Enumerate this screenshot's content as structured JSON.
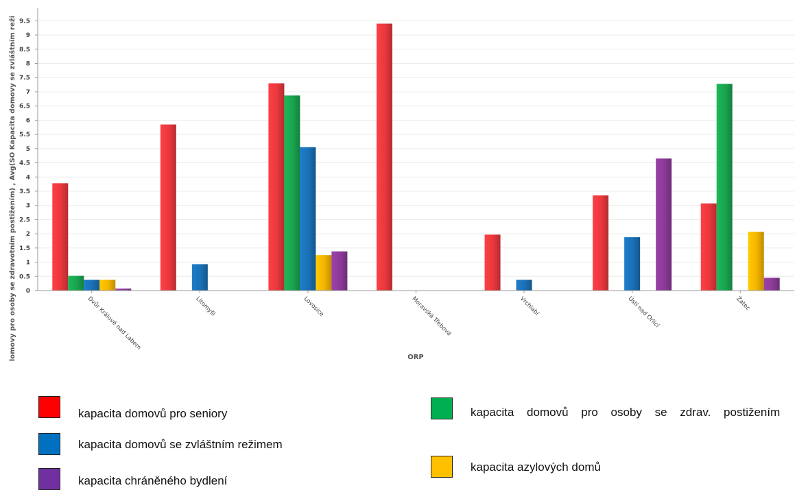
{
  "chart_data": {
    "type": "bar",
    "xlabel": "ORP",
    "ylabel": "lomovy pro osoby se zdravotním postižením) , Avg(SO Kapacita domovy se zvláštním reži",
    "ylim": [
      0,
      9.75
    ],
    "yticks": [
      "0",
      "0.5",
      "1",
      "1.5",
      "2",
      "2.5",
      "3",
      "3.5",
      "4",
      "4.5",
      "5",
      "5.5",
      "6",
      "6.5",
      "7",
      "7.5",
      "8",
      "8.5",
      "9",
      "9.5"
    ],
    "grid": true,
    "categories": [
      "Dvůr Králové nad Labem",
      "Litomyšl",
      "Lovosice",
      "Moravská Třebová",
      "Vrchlabí",
      "Ústí nad Orlicí",
      "Žatec"
    ],
    "series": [
      {
        "name": "kapacita domovů pro seniory",
        "color": "#e8383d",
        "values": [
          3.78,
          5.85,
          7.3,
          9.4,
          1.97,
          3.35,
          3.07
        ]
      },
      {
        "name": "kapacita domovů pro osoby se zdrav. postižením",
        "color": "#19a44f",
        "values": [
          0.52,
          0,
          6.87,
          0,
          0,
          0,
          7.28
        ]
      },
      {
        "name": "kapacita domovů se zvláštním režimem",
        "color": "#1a70b5",
        "values": [
          0.38,
          0.93,
          5.05,
          0,
          0.38,
          1.88,
          0
        ]
      },
      {
        "name": "kapacita azylových domů",
        "color": "#f4b400",
        "values": [
          0.38,
          0,
          1.25,
          0,
          0,
          0,
          2.07
        ]
      },
      {
        "name": "kapacita chráněného bydlení",
        "color": "#8b3a97",
        "values": [
          0.07,
          0,
          1.38,
          0,
          0,
          4.65,
          0.45
        ]
      }
    ]
  },
  "legend": [
    {
      "label": "kapacita domovů pro seniory",
      "color": "#ff0000"
    },
    {
      "label": "kapacita domovů pro osoby se zdrav. postižením",
      "color": "#00b050"
    },
    {
      "label": "kapacita domovů se zvláštním režimem",
      "color": "#0070c0"
    },
    {
      "label": "kapacita azylových domů",
      "color": "#ffc000"
    },
    {
      "label": "kapacita chráněného bydlení",
      "color": "#7030a0"
    }
  ]
}
